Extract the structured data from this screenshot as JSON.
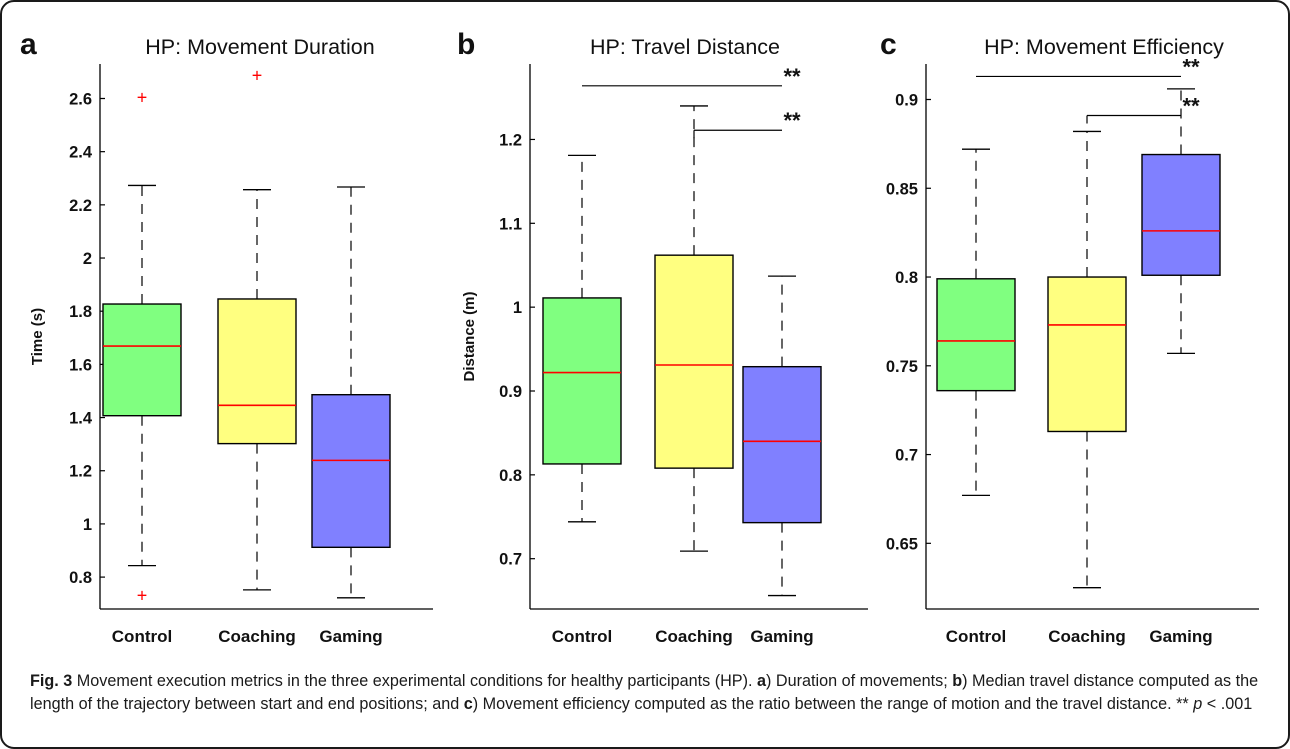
{
  "chart_data": [
    {
      "type": "box",
      "panel_letter": "a",
      "title": "HP: Movement Duration",
      "ylabel": "Time (s)",
      "xlabel": "",
      "ylim": [
        0.68,
        2.82
      ],
      "yticks": [
        0.8,
        1,
        1.2,
        1.4,
        1.6,
        1.8,
        2,
        2.2,
        2.4,
        2.6
      ],
      "ytick_labels": [
        "0.8",
        "1",
        "1.2",
        "1.4",
        "1.6",
        "1.8",
        "2",
        "2.2",
        "2.4",
        "2.6"
      ],
      "categories": [
        "Control",
        "Coaching",
        "Gaming"
      ],
      "boxes": [
        {
          "name": "Control",
          "whisker_low": 0.843,
          "q1": 1.407,
          "median": 1.669,
          "q3": 1.827,
          "whisker_high": 2.273,
          "outliers": [
            2.603,
            0.73
          ],
          "color": "#80ff80"
        },
        {
          "name": "Coaching",
          "whisker_low": 0.752,
          "q1": 1.302,
          "median": 1.446,
          "q3": 1.846,
          "whisker_high": 2.257,
          "outliers": [
            2.687
          ],
          "color": "#ffff80"
        },
        {
          "name": "Gaming",
          "whisker_low": 0.722,
          "q1": 0.912,
          "median": 1.239,
          "q3": 1.486,
          "whisker_high": 2.267,
          "outliers": [],
          "color": "#8080ff"
        }
      ],
      "significance": []
    },
    {
      "type": "box",
      "panel_letter": "b",
      "title": "HP: Travel Distance",
      "ylabel": "Distance (m)",
      "xlabel": "",
      "ylim": [
        0.64,
        1.29
      ],
      "yticks": [
        0.7,
        0.8,
        0.9,
        1.0,
        1.1,
        1.2
      ],
      "ytick_labels": [
        "0.7",
        "0.8",
        "0.9",
        "1",
        "1.1",
        "1.2"
      ],
      "categories": [
        "Control",
        "Coaching",
        "Gaming"
      ],
      "boxes": [
        {
          "name": "Control",
          "whisker_low": 0.744,
          "q1": 0.813,
          "median": 0.922,
          "q3": 1.011,
          "whisker_high": 1.181,
          "outliers": [],
          "color": "#80ff80"
        },
        {
          "name": "Coaching",
          "whisker_low": 0.709,
          "q1": 0.808,
          "median": 0.931,
          "q3": 1.062,
          "whisker_high": 1.24,
          "outliers": [],
          "color": "#ffff80"
        },
        {
          "name": "Gaming",
          "whisker_low": 0.656,
          "q1": 0.743,
          "median": 0.84,
          "q3": 0.929,
          "whisker_high": 1.037,
          "outliers": [],
          "color": "#8080ff"
        }
      ],
      "significance": [
        {
          "from": "Control",
          "to": "Gaming",
          "y": 1.264,
          "label": "**"
        },
        {
          "from": "Coaching",
          "to": "Gaming",
          "y": 1.211,
          "label": "**"
        }
      ]
    },
    {
      "type": "box",
      "panel_letter": "c",
      "title": "HP: Movement Efficiency",
      "ylabel": "",
      "xlabel": "",
      "ylim": [
        0.613,
        0.92
      ],
      "yticks": [
        0.65,
        0.7,
        0.75,
        0.8,
        0.85,
        0.9
      ],
      "ytick_labels": [
        "0.65",
        "0.7",
        "0.75",
        "0.8",
        "0.85",
        "0.9"
      ],
      "categories": [
        "Control",
        "Coaching",
        "Gaming"
      ],
      "boxes": [
        {
          "name": "Control",
          "whisker_low": 0.677,
          "q1": 0.736,
          "median": 0.764,
          "q3": 0.799,
          "whisker_high": 0.872,
          "outliers": [],
          "color": "#80ff80"
        },
        {
          "name": "Coaching",
          "whisker_low": 0.625,
          "q1": 0.713,
          "median": 0.773,
          "q3": 0.8,
          "whisker_high": 0.882,
          "outliers": [],
          "color": "#ffff80"
        },
        {
          "name": "Gaming",
          "whisker_low": 0.757,
          "q1": 0.801,
          "median": 0.826,
          "q3": 0.869,
          "whisker_high": 0.906,
          "outliers": [],
          "color": "#8080ff"
        }
      ],
      "significance": [
        {
          "from": "Control",
          "to": "Gaming",
          "y": 0.913,
          "label": "**"
        },
        {
          "from": "Coaching",
          "to": "Gaming",
          "y": 0.891,
          "label": "**"
        }
      ]
    }
  ],
  "colors": {
    "median": "#ff0000",
    "outlier": "#ff0000",
    "stroke": "#000000"
  },
  "caption": {
    "fig_label": "Fig. 3",
    "lead": " Movement execution metrics in the three experimental conditions for healthy participants (HP). ",
    "a_letter": "a",
    "a_text": ") Duration of movements; ",
    "b_letter": "b",
    "b_text": ") Median travel distance computed as the length of the trajectory between start and end positions; and ",
    "c_letter": "c",
    "c_text": ") Movement efficiency computed as the ratio between the range of motion and the travel distance. ** ",
    "p_symbol": "p",
    "p_rest": " < .001"
  }
}
